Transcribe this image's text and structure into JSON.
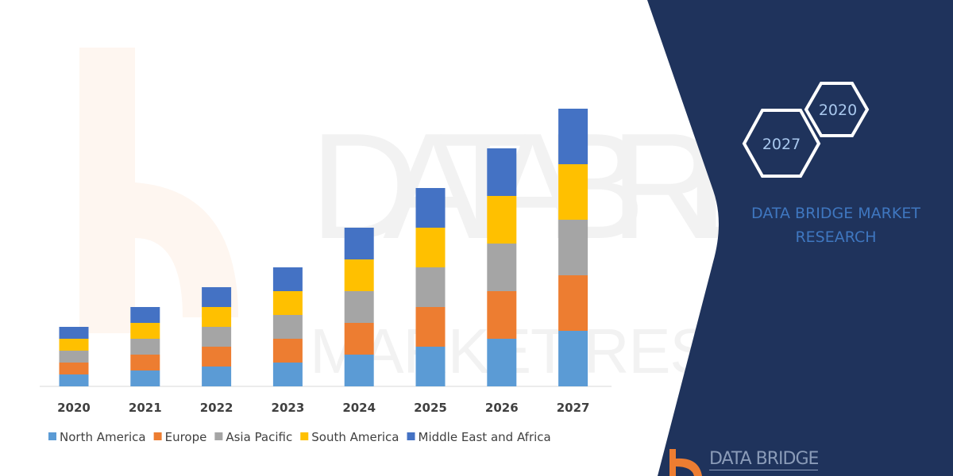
{
  "colors": {
    "panel": "#1f335c",
    "brand_text": "#3f77c0"
  },
  "panel": {
    "hexagons": [
      "2027",
      "2020"
    ],
    "brand_lines": [
      "DATA BRIDGE MARKET",
      "RESEARCH"
    ],
    "logo_text": "DATA BRIDGE"
  },
  "watermark": {
    "line1": "DATA BRIDGE",
    "line2": "MARKET RESEARCH"
  },
  "chart_data": {
    "type": "bar",
    "stacked": true,
    "title": "",
    "xlabel": "",
    "ylabel": "",
    "grid": false,
    "y_axis_shown": false,
    "legend_position": "bottom",
    "categories": [
      "2020",
      "2021",
      "2022",
      "2023",
      "2024",
      "2025",
      "2026",
      "2027"
    ],
    "series": [
      {
        "name": "North America",
        "color": "#5b9bd5",
        "values": [
          3,
          4,
          5,
          6,
          8,
          10,
          12,
          14
        ]
      },
      {
        "name": "Europe",
        "color": "#ed7d31",
        "values": [
          3,
          4,
          5,
          6,
          8,
          10,
          12,
          14
        ]
      },
      {
        "name": "Asia Pacific",
        "color": "#a5a5a5",
        "values": [
          3,
          4,
          5,
          6,
          8,
          10,
          12,
          14
        ]
      },
      {
        "name": "South America",
        "color": "#ffc000",
        "values": [
          3,
          4,
          5,
          6,
          8,
          10,
          12,
          14
        ]
      },
      {
        "name": "Middle East and Africa",
        "color": "#4472c4",
        "values": [
          3,
          4,
          5,
          6,
          8,
          10,
          12,
          14
        ]
      }
    ]
  }
}
